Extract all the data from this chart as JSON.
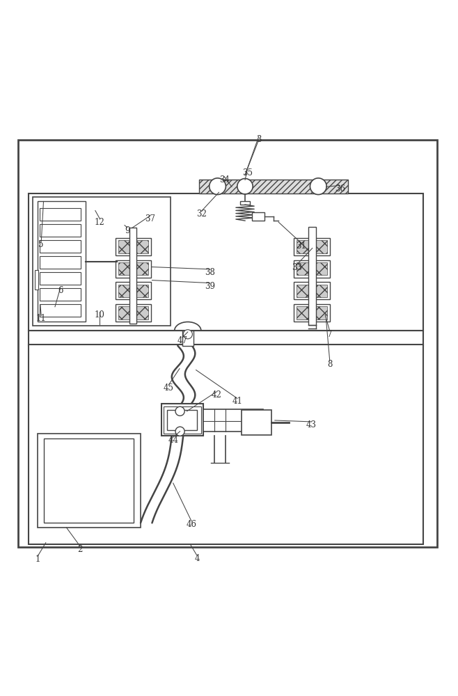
{
  "bg_color": "#ffffff",
  "line_color": "#444444",
  "label_color": "#333333",
  "fig_width": 6.58,
  "fig_height": 10.0
}
